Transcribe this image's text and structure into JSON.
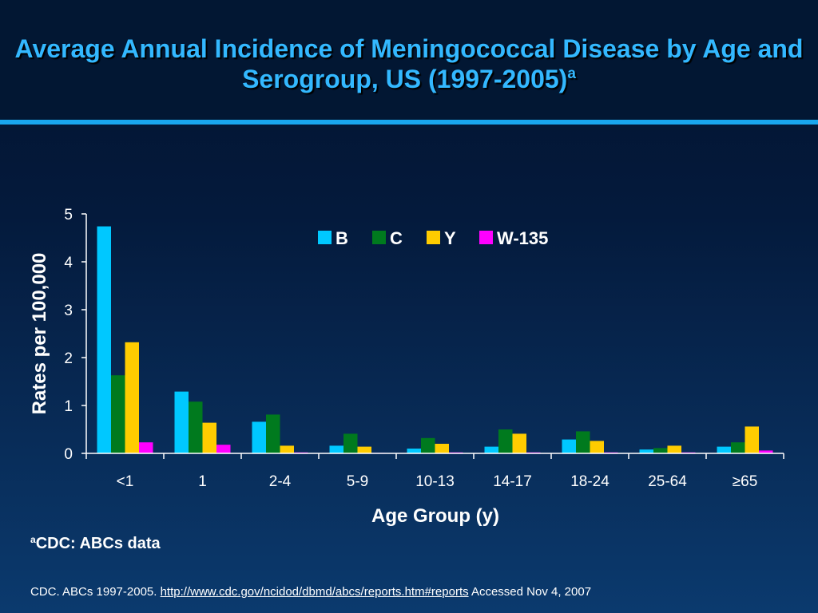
{
  "slide": {
    "title": "Average Annual Incidence of Meningococcal Disease by Age and Serogroup, US (1997-2005)",
    "title_superscript": "a",
    "footnote_marker": "a",
    "footnote_text": "CDC: ABCs data",
    "citation_prefix": "CDC. ABCs 1997-2005. ",
    "citation_link": "http://www.cdc.gov/ncidod/dbmd/abcs/reports.htm#reports",
    "citation_suffix": " Accessed Nov 4, 2007"
  },
  "colors": {
    "title": "#33b8ff",
    "accent_rule": "#19a6ee",
    "text": "#ffffff"
  },
  "chart_data": {
    "type": "bar",
    "title": "",
    "xlabel": "Age Group (y)",
    "ylabel": "Rates per 100,000",
    "ylim": [
      0,
      5
    ],
    "yticks": [
      "0",
      "1",
      "2",
      "3",
      "4",
      "5"
    ],
    "grid": false,
    "legend_position": "top",
    "categories": [
      "<1",
      "1",
      "2-4",
      "5-9",
      "10-13",
      "14-17",
      "18-24",
      "25-64",
      "≥65"
    ],
    "series": [
      {
        "name": "B",
        "color": "#00c8ff",
        "values": [
          4.74,
          1.29,
          0.66,
          0.16,
          0.1,
          0.14,
          0.29,
          0.08,
          0.14
        ]
      },
      {
        "name": "C",
        "color": "#007a1e",
        "values": [
          1.63,
          1.08,
          0.81,
          0.41,
          0.32,
          0.5,
          0.46,
          0.11,
          0.23
        ]
      },
      {
        "name": "Y",
        "color": "#ffcc00",
        "values": [
          2.32,
          0.64,
          0.16,
          0.14,
          0.2,
          0.41,
          0.26,
          0.16,
          0.56
        ]
      },
      {
        "name": "W-135",
        "color": "#ff00ff",
        "values": [
          0.23,
          0.18,
          0.02,
          0.01,
          0.02,
          0.02,
          0.02,
          0.02,
          0.06
        ]
      }
    ]
  }
}
